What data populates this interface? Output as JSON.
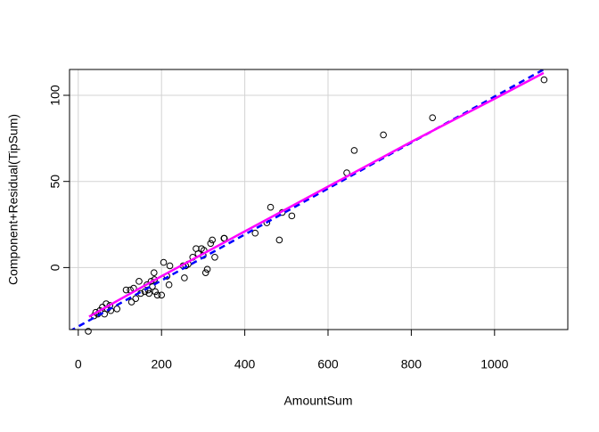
{
  "chart_data": {
    "type": "scatter",
    "xlabel": "AmountSum",
    "ylabel": "Component+Residual(TipSum)",
    "xlim": [
      -21,
      1176
    ],
    "ylim": [
      -36,
      115
    ],
    "xticks": [
      0,
      200,
      400,
      600,
      800,
      1000
    ],
    "yticks": [
      0,
      50,
      100
    ],
    "grid": true,
    "series": [
      {
        "color": "#000000",
        "marker": "circle",
        "x": [
          24,
          38,
          42,
          47,
          52,
          58,
          63,
          67,
          70,
          76,
          78,
          93,
          115,
          125,
          128,
          133,
          138,
          146,
          150,
          160,
          165,
          168,
          170,
          175,
          178,
          182,
          183,
          185,
          190,
          200,
          205,
          213,
          218,
          220,
          252,
          255,
          258,
          264,
          275,
          283,
          288,
          296,
          300,
          302,
          306,
          310,
          318,
          322,
          328,
          350,
          351,
          425,
          453,
          462,
          483,
          490,
          513,
          645,
          663,
          733,
          851,
          1119
        ],
        "y": [
          -37,
          -28,
          -26,
          -27,
          -25,
          -23,
          -27,
          -21,
          -24,
          -22,
          -25,
          -24,
          -13,
          -13,
          -20,
          -12,
          -18,
          -8,
          -15,
          -14,
          -10,
          -13,
          -15,
          -8,
          -11,
          -3,
          -7,
          -14,
          -16,
          -16,
          3,
          -5,
          -10,
          1,
          1,
          -6,
          1,
          2,
          6,
          11,
          8,
          11,
          7,
          10,
          -3,
          -1,
          14,
          16,
          6,
          17,
          17,
          20,
          26,
          35,
          16,
          32,
          30,
          55,
          68,
          77,
          87,
          109
        ]
      },
      {
        "color": "#0000ff",
        "style": "dashed",
        "x": [
          -21,
          1118
        ],
        "y": [
          -37,
          115
        ]
      },
      {
        "color": "#ff00ff",
        "style": "solid",
        "x": [
          26,
          200,
          400,
          600,
          800,
          1000,
          1118
        ],
        "y": [
          -28.5,
          -5,
          21,
          47,
          73,
          98,
          113
        ]
      }
    ]
  }
}
